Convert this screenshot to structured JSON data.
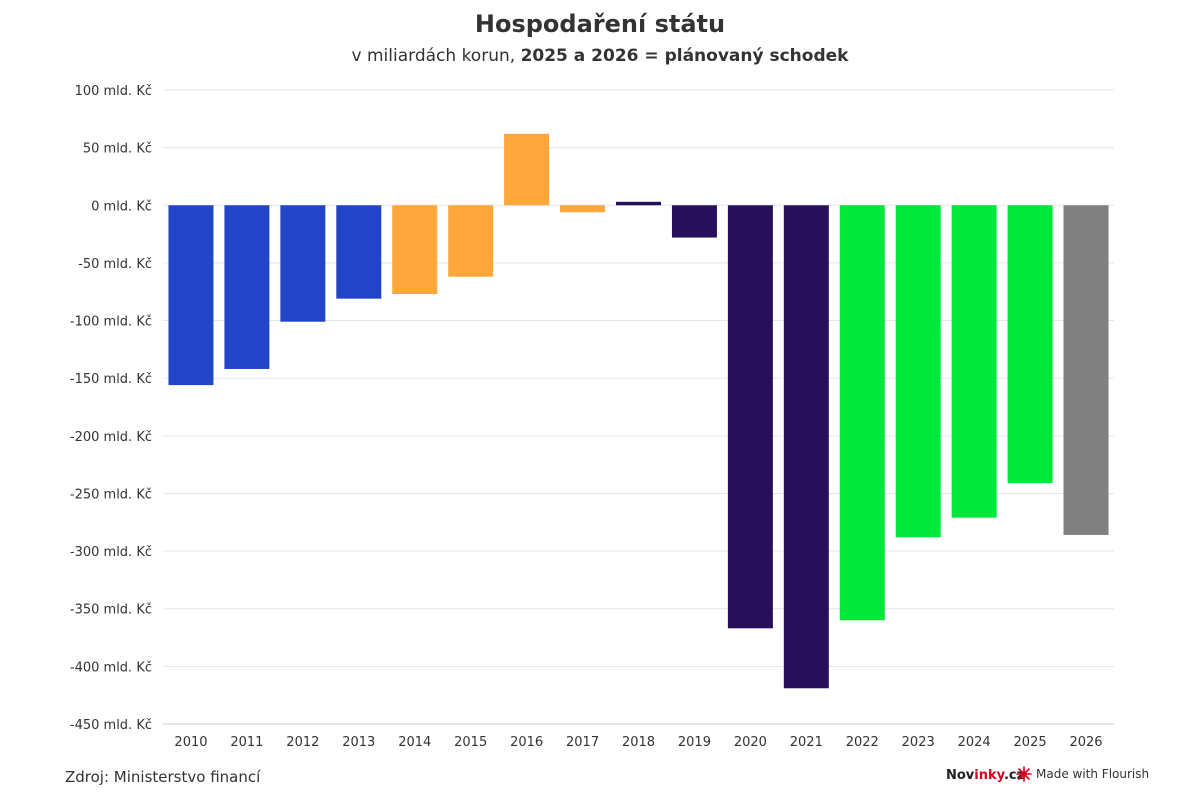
{
  "header": {
    "title": "Hospodaření státu",
    "subtitle_plain": "v miliardách korun, ",
    "subtitle_bold": "2025 a 2026 = plánovaný schodek"
  },
  "footer": {
    "source": "Zdroj: Ministerstvo financí",
    "brand_pre": "Nov",
    "brand_accent": "inky",
    "brand_post": ".cz",
    "made_with": "Made with Flourish",
    "flourish_icon": "flourish-star-icon"
  },
  "colors": {
    "blue": "#2244c6",
    "orange": "#ffa63c",
    "purple": "#26105c",
    "green": "#00e83a",
    "gray": "#808080",
    "grid": "#e6e6e6",
    "accent": "#d6001c"
  },
  "chart_data": {
    "type": "bar",
    "title": "Hospodaření státu",
    "subtitle": "v miliardách korun, 2025 a 2026 = plánovaný schodek",
    "categories": [
      "2010",
      "2011",
      "2012",
      "2013",
      "2014",
      "2015",
      "2016",
      "2017",
      "2018",
      "2019",
      "2020",
      "2021",
      "2022",
      "2023",
      "2024",
      "2025",
      "2026"
    ],
    "values": [
      -156,
      -142,
      -101,
      -81,
      -77,
      -62,
      62,
      -6,
      3,
      -28,
      -367,
      -419,
      -360,
      -288,
      -271,
      -241,
      -286
    ],
    "bar_colors": [
      "#2244c6",
      "#2244c6",
      "#2244c6",
      "#2244c6",
      "#ffa63c",
      "#ffa63c",
      "#ffa63c",
      "#ffa63c",
      "#26105c",
      "#26105c",
      "#26105c",
      "#26105c",
      "#00e83a",
      "#00e83a",
      "#00e83a",
      "#00e83a",
      "#808080"
    ],
    "ylim": [
      -450,
      100
    ],
    "yticks": [
      100,
      50,
      0,
      -50,
      -100,
      -150,
      -200,
      -250,
      -300,
      -350,
      -400,
      -450
    ],
    "ytick_labels": [
      "100 mld. Kč",
      "50 mld. Kč",
      "0 mld. Kč",
      "-50 mld. Kč",
      "-100 mld. Kč",
      "-150 mld. Kč",
      "-200 mld. Kč",
      "-250 mld. Kč",
      "-300 mld. Kč",
      "-350 mld. Kč",
      "-400 mld. Kč",
      "-450 mld. Kč"
    ],
    "xlabel": "",
    "ylabel": "",
    "grid": true
  }
}
